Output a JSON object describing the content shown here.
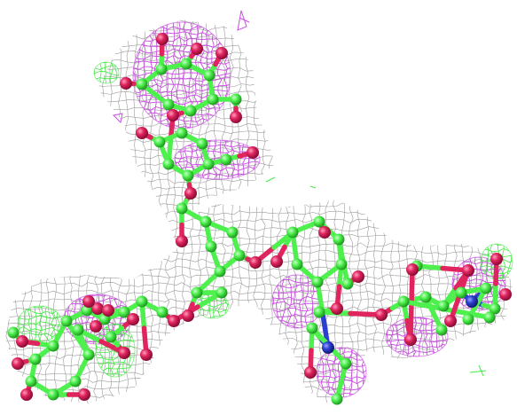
{
  "scene": {
    "subject": "glycan-ball-and-stick-with-electron-density",
    "colors": {
      "background": "#ffffff",
      "mesh_grey": "#8a8a8a",
      "mesh_magenta": "#c84ee0",
      "mesh_green": "#45e845",
      "carbon": "#4ef04e",
      "oxygen": "#e0245e",
      "nitrogen": "#2b3fd0"
    }
  }
}
